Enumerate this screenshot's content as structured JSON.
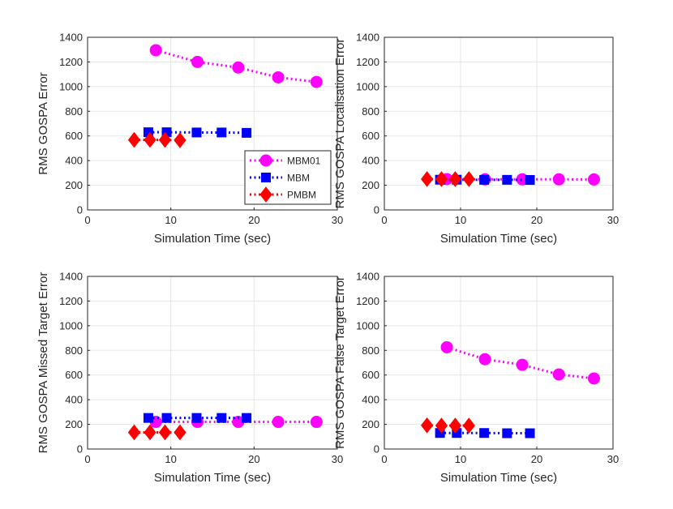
{
  "chart_data": [
    {
      "type": "line",
      "xlabel": "Simulation Time (sec)",
      "ylabel": "RMS GOSPA Error",
      "xlim": [
        0,
        30
      ],
      "ylim": [
        0,
        1400
      ],
      "xticks": [
        0,
        10,
        20,
        30
      ],
      "yticks": [
        0,
        200,
        400,
        600,
        800,
        1000,
        1200,
        1400
      ],
      "grid": true,
      "legend": "bottom-right",
      "series": [
        {
          "name": "MBM01",
          "color": "#ff00ff",
          "marker": "circle",
          "x": [
            8.2,
            13.2,
            18.1,
            22.9,
            27.5
          ],
          "y": [
            1295,
            1200,
            1155,
            1075,
            1038
          ]
        },
        {
          "name": "MBM",
          "color": "#0000ff",
          "marker": "square",
          "x": [
            7.3,
            9.5,
            13.1,
            16.1,
            19.1
          ],
          "y": [
            630,
            630,
            628,
            628,
            625
          ]
        },
        {
          "name": "PMBM",
          "color": "#ff0000",
          "marker": "diamond",
          "x": [
            5.6,
            7.5,
            9.3,
            11.1
          ],
          "y": [
            568,
            568,
            568,
            565
          ]
        }
      ]
    },
    {
      "type": "line",
      "xlabel": "Simulation Time (sec)",
      "ylabel": "RMS GOSPA Localisation Error",
      "xlim": [
        0,
        30
      ],
      "ylim": [
        0,
        1400
      ],
      "xticks": [
        0,
        10,
        20,
        30
      ],
      "yticks": [
        0,
        200,
        400,
        600,
        800,
        1000,
        1200,
        1400
      ],
      "grid": true,
      "series": [
        {
          "name": "MBM01",
          "color": "#ff00ff",
          "marker": "circle",
          "x": [
            8.2,
            13.2,
            18.1,
            22.9,
            27.5
          ],
          "y": [
            250,
            248,
            248,
            248,
            247
          ]
        },
        {
          "name": "MBM",
          "color": "#0000ff",
          "marker": "square",
          "x": [
            7.3,
            9.5,
            13.1,
            16.1,
            19.1
          ],
          "y": [
            245,
            245,
            244,
            244,
            243
          ]
        },
        {
          "name": "PMBM",
          "color": "#ff0000",
          "marker": "diamond",
          "x": [
            5.6,
            7.5,
            9.3,
            11.1
          ],
          "y": [
            250,
            250,
            250,
            250
          ]
        }
      ]
    },
    {
      "type": "line",
      "xlabel": "Simulation Time (sec)",
      "ylabel": "RMS GOSPA Missed Target Error",
      "xlim": [
        0,
        30
      ],
      "ylim": [
        0,
        1400
      ],
      "xticks": [
        0,
        10,
        20,
        30
      ],
      "yticks": [
        0,
        200,
        400,
        600,
        800,
        1000,
        1200,
        1400
      ],
      "grid": true,
      "series": [
        {
          "name": "MBM01",
          "color": "#ff00ff",
          "marker": "circle",
          "x": [
            8.2,
            13.2,
            18.1,
            22.9,
            27.5
          ],
          "y": [
            220,
            220,
            220,
            220,
            220
          ]
        },
        {
          "name": "MBM",
          "color": "#0000ff",
          "marker": "square",
          "x": [
            7.3,
            9.5,
            13.1,
            16.1,
            19.1
          ],
          "y": [
            252,
            252,
            252,
            252,
            252
          ]
        },
        {
          "name": "PMBM",
          "color": "#ff0000",
          "marker": "diamond",
          "x": [
            5.6,
            7.5,
            9.3,
            11.1
          ],
          "y": [
            135,
            135,
            135,
            135
          ]
        }
      ]
    },
    {
      "type": "line",
      "xlabel": "Simulation Time (sec)",
      "ylabel": "RMS GOSPA False Target Error",
      "xlim": [
        0,
        30
      ],
      "ylim": [
        0,
        1400
      ],
      "xticks": [
        0,
        10,
        20,
        30
      ],
      "yticks": [
        0,
        200,
        400,
        600,
        800,
        1000,
        1200,
        1400
      ],
      "grid": true,
      "series": [
        {
          "name": "MBM01",
          "color": "#ff00ff",
          "marker": "circle",
          "x": [
            8.2,
            13.2,
            18.1,
            22.9,
            27.5
          ],
          "y": [
            825,
            728,
            683,
            605,
            572
          ]
        },
        {
          "name": "MBM",
          "color": "#0000ff",
          "marker": "square",
          "x": [
            7.3,
            9.5,
            13.1,
            16.1,
            19.1
          ],
          "y": [
            130,
            130,
            130,
            128,
            128
          ]
        },
        {
          "name": "PMBM",
          "color": "#ff0000",
          "marker": "diamond",
          "x": [
            5.6,
            7.5,
            9.3,
            11.1
          ],
          "y": [
            192,
            190,
            190,
            190
          ]
        }
      ]
    }
  ]
}
